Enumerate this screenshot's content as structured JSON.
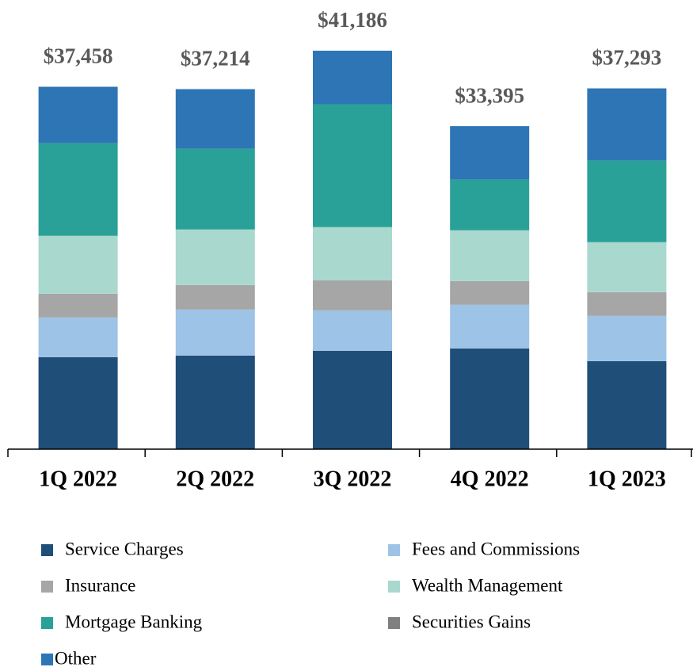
{
  "chart_data": {
    "type": "stacked_bar",
    "categories": [
      "1Q 2022",
      "2Q 2022",
      "3Q 2022",
      "4Q 2022",
      "1Q 2023"
    ],
    "totals": [
      37458,
      37214,
      41186,
      33395,
      37293
    ],
    "total_labels": [
      "$37,458",
      "$37,214",
      "$41,186",
      "$33,395",
      "$37,293"
    ],
    "series": [
      {
        "name": "Service Charges",
        "color": "#1f4e79",
        "values": [
          9508,
          9672,
          10164,
          10410,
          9099
        ]
      },
      {
        "name": "Fees and Commissions",
        "color": "#9dc3e6",
        "values": [
          4099,
          4754,
          4180,
          4508,
          4672
        ]
      },
      {
        "name": "Insurance",
        "color": "#a6a6a6",
        "values": [
          2459,
          2541,
          3115,
          2459,
          2459
        ]
      },
      {
        "name": "Wealth Management",
        "color": "#a9d8cf",
        "values": [
          5984,
          5738,
          5492,
          5246,
          5164
        ]
      },
      {
        "name": "Mortgage Banking",
        "color": "#2aa198",
        "values": [
          9590,
          8361,
          12705,
          5246,
          8443
        ]
      },
      {
        "name": "Securities Gains",
        "color": "#808080",
        "values": [
          0,
          0,
          0,
          0,
          0
        ]
      },
      {
        "name": "Other",
        "color": "#2e75b6",
        "values": [
          5818,
          6148,
          5530,
          5526,
          7456
        ]
      }
    ]
  }
}
